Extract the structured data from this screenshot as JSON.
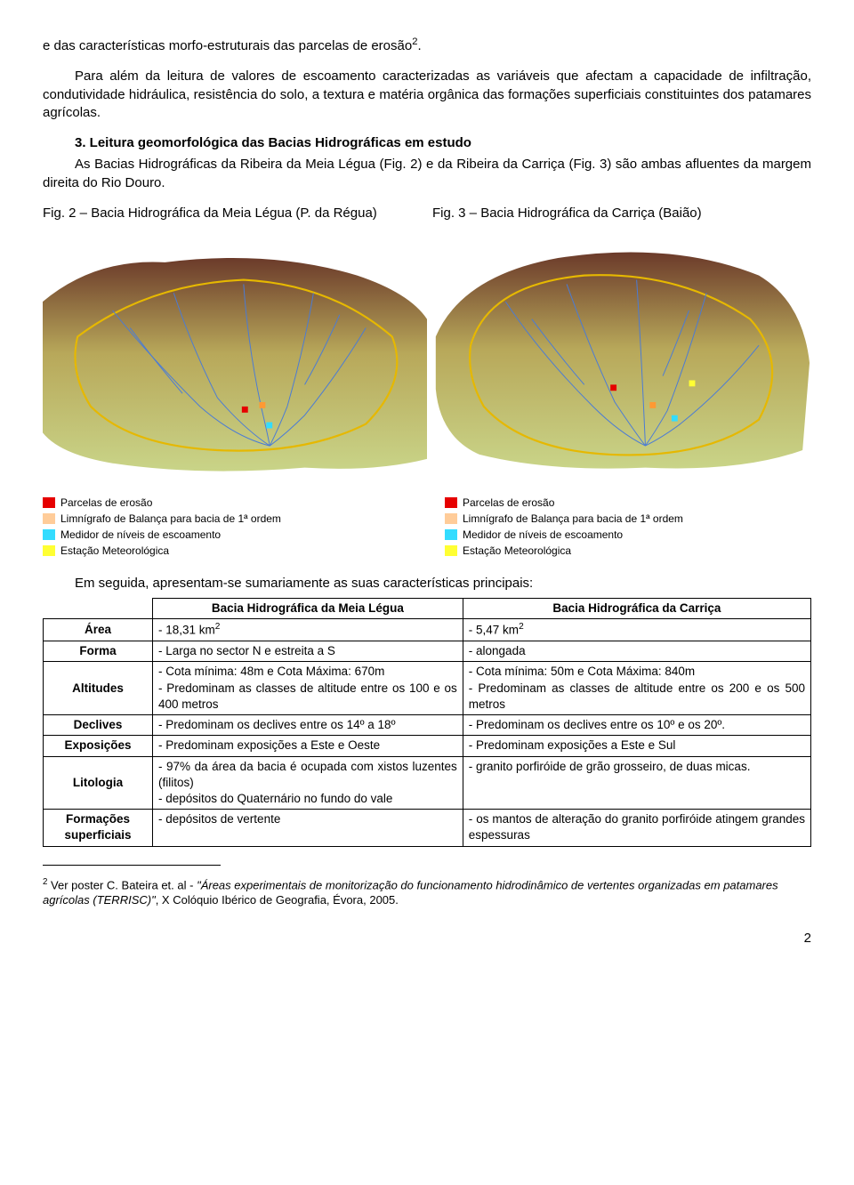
{
  "paragraphs": {
    "p1_prefix": "e das características morfo-estruturais das parcelas de erosão",
    "p1_sup": "2",
    "p1_suffix": ".",
    "p2": "Para além da leitura de valores de escoamento caracterizadas as variáveis que afectam a capacidade de infiltração, condutividade hidráulica, resistência do solo, a textura e matéria orgânica das formações superficiais constituintes dos patamares agrícolas.",
    "section_title": "3. Leitura geomorfológica das Bacias Hidrográficas em estudo",
    "p3": "As Bacias Hidrográficas da Ribeira da Meia Légua (Fig. 2) e da Ribeira da Carriça (Fig. 3) são ambas afluentes da margem direita do Rio Douro."
  },
  "fig_captions": {
    "left": "Fig. 2 – Bacia Hidrográfica da Meia Légua (P. da Régua)",
    "right": "Fig. 3 – Bacia Hidrográfica da Carriça (Baião)"
  },
  "maps": {
    "terrain_gradient_top": "#6b3a2a",
    "terrain_gradient_mid": "#b8a85a",
    "terrain_gradient_low": "#c9d488",
    "boundary_color": "#e6b800",
    "stream_color": "#4a7bd6",
    "marker_red": "#e60000",
    "marker_orange": "#ff9933",
    "marker_cyan": "#33dcff",
    "marker_yellow": "#ffff33"
  },
  "legend": {
    "items": [
      {
        "color": "#e60000",
        "label": "Parcelas de erosão"
      },
      {
        "color": "#ffcc99",
        "label": "Limnígrafo de Balança para bacia de 1ª ordem"
      },
      {
        "color": "#33dcff",
        "label": "Medidor de níveis de escoamento"
      },
      {
        "color": "#ffff33",
        "label": "Estação Meteorológica"
      }
    ]
  },
  "table_intro": "Em seguida, apresentam-se sumariamente as suas características principais:",
  "table": {
    "col1_header": "Bacia Hidrográfica da Meia Légua",
    "col2_header": "Bacia Hidrográfica da Carriça",
    "rows": [
      {
        "head": "Área",
        "c1_prefix": "- 18,31 km",
        "c1_sup": "2",
        "c2_prefix": "- 5,47 km",
        "c2_sup": "2"
      },
      {
        "head": "Forma",
        "c1": "- Larga no sector N e estreita a S",
        "c2": "- alongada"
      },
      {
        "head": "Altitudes",
        "c1": "- Cota mínima: 48m e Cota Máxima: 670m\n- Predominam as classes de altitude entre os 100 e os 400 metros",
        "c2": "- Cota mínima: 50m e Cota Máxima: 840m\n- Predominam as classes de altitude entre os 200 e os 500 metros"
      },
      {
        "head": "Declives",
        "c1": "- Predominam os declives entre os 14º a 18º",
        "c2": "- Predominam os declives entre os 10º e os 20º."
      },
      {
        "head": "Exposições",
        "c1": "- Predominam exposições a Este e Oeste",
        "c2": "- Predominam exposições a Este e Sul"
      },
      {
        "head": "Litologia",
        "c1": "- 97% da área da bacia é ocupada com xistos luzentes (filitos)\n- depósitos do Quaternário no fundo do vale",
        "c2": "- granito porfiróide de grão grosseiro, de duas micas."
      },
      {
        "head": "Formações superficiais",
        "c1": "- depósitos de vertente",
        "c2": "- os mantos de alteração do granito porfiróide atingem grandes espessuras"
      }
    ]
  },
  "footnote": {
    "num": "2",
    "text_prefix": " Ver poster C. Bateira et. al - ",
    "text_italic": "\"Áreas experimentais de monitorização do funcionamento hidrodinâmico de vertentes organizadas em patamares agrícolas (TERRISC)\"",
    "text_suffix": ", X Colóquio Ibérico de Geografia, Évora, 2005."
  },
  "pagenum": "2"
}
